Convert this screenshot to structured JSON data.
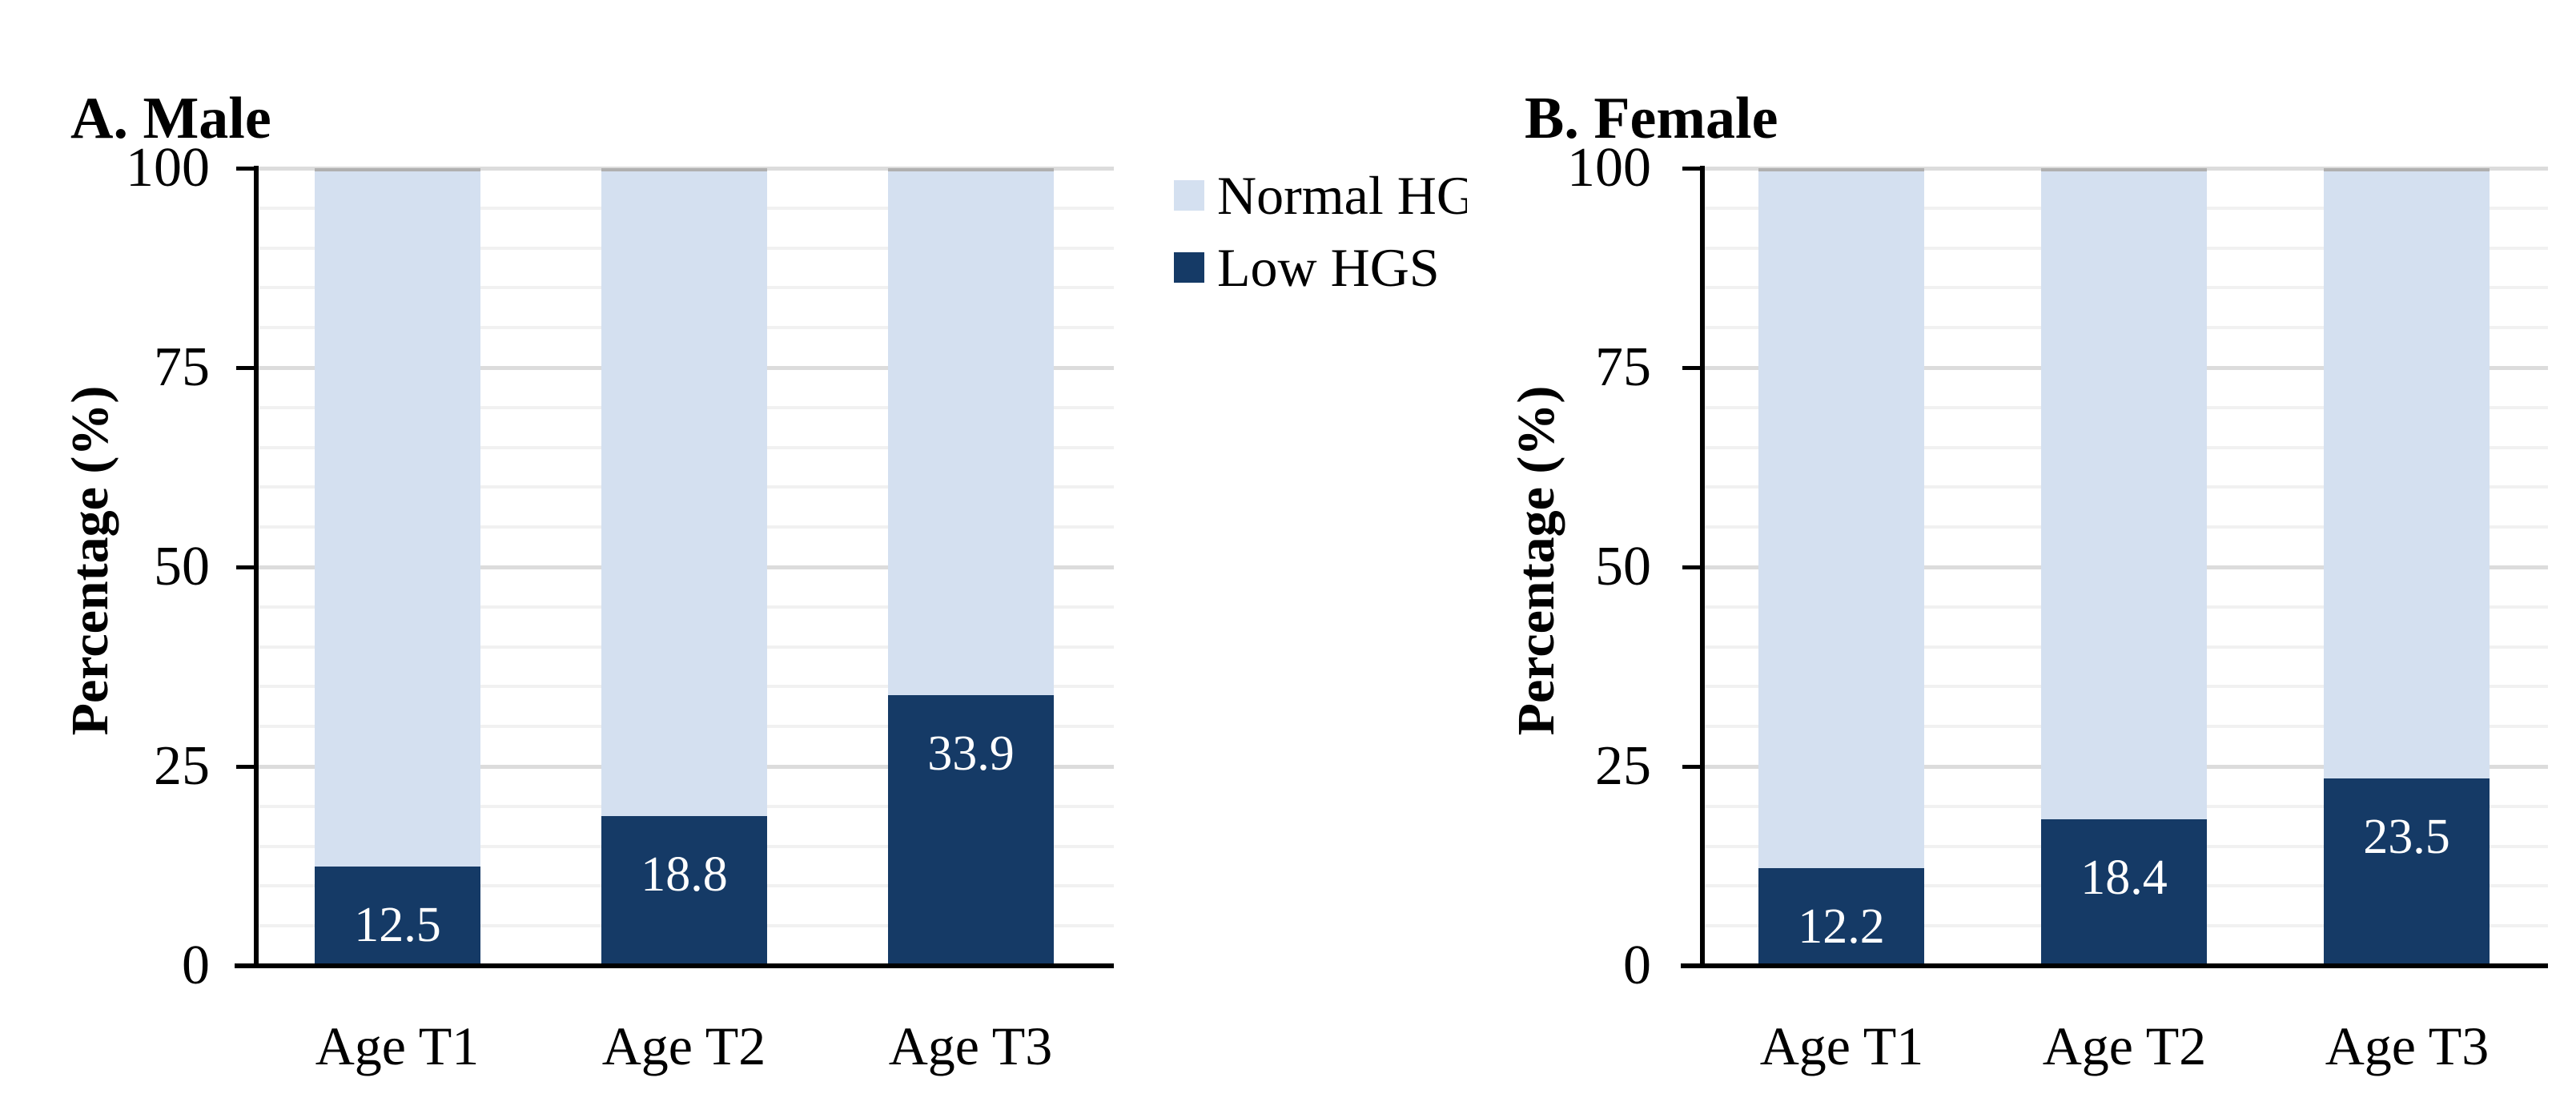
{
  "legend": {
    "position": "between panels, top",
    "items": [
      {
        "label": "Normal HGS",
        "color": "#d4e0f0"
      },
      {
        "label": "Low HGS",
        "color": "#153a66"
      }
    ]
  },
  "chart_data": [
    {
      "type": "bar",
      "stacked": true,
      "orientation": "vertical",
      "title": "A. Male",
      "xlabel": "",
      "ylabel": "Percentage (%)",
      "ylim": [
        0,
        100
      ],
      "yticks": [
        0,
        25,
        50,
        75,
        100
      ],
      "grid": "horizontal; minor every 5 (very light), major every 25 (light gray)",
      "categories": [
        "Age T1",
        "Age T2",
        "Age T3"
      ],
      "series": [
        {
          "name": "Low HGS",
          "color": "#153a66",
          "values": [
            12.5,
            18.8,
            33.9
          ]
        },
        {
          "name": "Normal HGS",
          "color": "#d4e0f0",
          "values": [
            87.5,
            81.2,
            66.1
          ]
        }
      ],
      "data_labels": {
        "series": "Low HGS",
        "values": [
          "12.5",
          "18.8",
          "33.9"
        ],
        "color": "#ffffff",
        "position": "inside top of low segment"
      }
    },
    {
      "type": "bar",
      "stacked": true,
      "orientation": "vertical",
      "title": "B. Female",
      "xlabel": "",
      "ylabel": "Percentage (%)",
      "ylim": [
        0,
        100
      ],
      "yticks": [
        0,
        25,
        50,
        75,
        100
      ],
      "grid": "horizontal; minor every 5 (very light), major every 25 (light gray)",
      "categories": [
        "Age T1",
        "Age T2",
        "Age T3"
      ],
      "series": [
        {
          "name": "Low HGS",
          "color": "#153a66",
          "values": [
            12.2,
            18.4,
            23.5
          ]
        },
        {
          "name": "Normal HGS",
          "color": "#d4e0f0",
          "values": [
            87.8,
            81.6,
            76.5
          ]
        }
      ],
      "data_labels": {
        "series": "Low HGS",
        "values": [
          "12.2",
          "18.4",
          "23.5"
        ],
        "color": "#ffffff",
        "position": "inside top of low segment"
      }
    }
  ],
  "colors": {
    "low_hgs": "#153a66",
    "normal_hgs": "#d4e0f0",
    "minor_gridline": "#f1f1f1",
    "major_gridline": "#dcdcdc",
    "bar_top_cap": "#b0b0b0",
    "axis": "#000000",
    "background": "#ffffff"
  }
}
